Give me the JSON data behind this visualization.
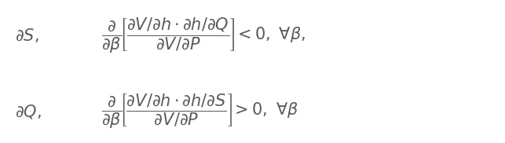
{
  "line1_left": "$\\partial S,$",
  "line1_expr": "$\\dfrac{\\partial}{\\partial\\beta}\\left[\\dfrac{\\partial V/\\partial h \\cdot \\partial h/\\partial Q}{\\partial V/\\partial P}\\right] < 0, \\; \\forall\\beta,$",
  "line2_left": "$\\partial Q,$",
  "line2_expr": "$\\dfrac{\\partial}{\\partial\\beta}\\left[\\dfrac{\\partial V/\\partial h \\cdot \\partial h/\\partial S}{\\partial V/\\partial P}\\right] > 0, \\; \\forall\\beta$",
  "text_color": "#5a5a5a",
  "background_color": "#ffffff",
  "fontsize": 15,
  "fig_width": 6.43,
  "fig_height": 1.82,
  "dpi": 100
}
